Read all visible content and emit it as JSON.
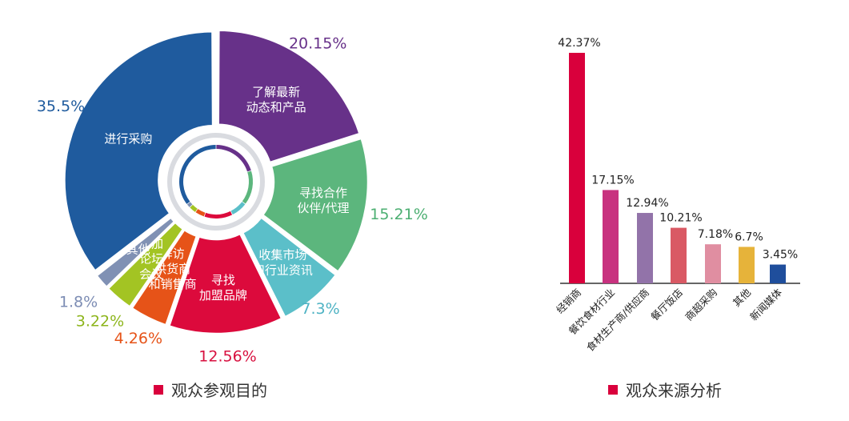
{
  "colors": {
    "accent": "#d9003c",
    "axis": "#333333"
  },
  "chart_data": [
    {
      "type": "pie",
      "title": "观众参观目的",
      "slices": [
        {
          "label": "了解最新动态和产品",
          "lines": [
            "了解最新",
            "动态和产品"
          ],
          "value_text": "20.15%",
          "value": 20.15,
          "color": "#673189",
          "text_color": "#673189"
        },
        {
          "label": "寻找合作伙伴/代理",
          "lines": [
            "寻找合作",
            "伙伴/代理"
          ],
          "value_text": "15.21%",
          "value": 15.21,
          "color": "#5cb67d",
          "text_color": "#4caf72"
        },
        {
          "label": "收集市场和行业资讯",
          "lines": [
            "收集市场",
            "和行业资讯"
          ],
          "value_text": "7.3%",
          "value": 7.3,
          "color": "#5bbfc9",
          "text_color": "#4fb3c4"
        },
        {
          "label": "寻找加盟品牌",
          "lines": [
            "寻找",
            "加盟品牌"
          ],
          "value_text": "12.56%",
          "value": 12.56,
          "color": "#dc0a3c",
          "text_color": "#d8103f"
        },
        {
          "label": "拜访供货商和销售商",
          "lines": [
            "拜访",
            "供货商",
            "和销售商"
          ],
          "value_text": "4.26%",
          "value": 4.26,
          "color": "#e65318",
          "text_color": "#e65318"
        },
        {
          "label": "参加论坛会议",
          "lines": [
            "参加",
            "论坛",
            "会议"
          ],
          "value_text": "3.22%",
          "value": 3.22,
          "color": "#a3c423",
          "text_color": "#8db51c"
        },
        {
          "label": "其他",
          "lines": [
            "其他"
          ],
          "value_text": "1.8%",
          "value": 1.8,
          "color": "#8091b4",
          "text_color": "#7d8db4"
        },
        {
          "label": "进行采购",
          "lines": [
            "进行采购"
          ],
          "value_text": "35.5%",
          "value": 35.5,
          "color": "#1f5b9e",
          "text_color": "#1f5b9e"
        }
      ]
    },
    {
      "type": "bar",
      "title": "观众来源分析",
      "categories": [
        "经销商",
        "餐饮食材行业",
        "食材生产商/供应商",
        "餐厅饭店",
        "商超采购",
        "其他",
        "新闻媒体"
      ],
      "values": [
        42.37,
        17.15,
        12.94,
        10.21,
        7.18,
        6.7,
        3.45
      ],
      "value_labels": [
        "42.37%",
        "17.15%",
        "12.94%",
        "10.21%",
        "7.18%",
        "6.7%",
        "3.45%"
      ],
      "colors": [
        "#d9003c",
        "#c8327f",
        "#9273a9",
        "#d95964",
        "#e08ea1",
        "#e6b33a",
        "#1f4e9c"
      ],
      "ylim": [
        0,
        42.37
      ]
    }
  ]
}
